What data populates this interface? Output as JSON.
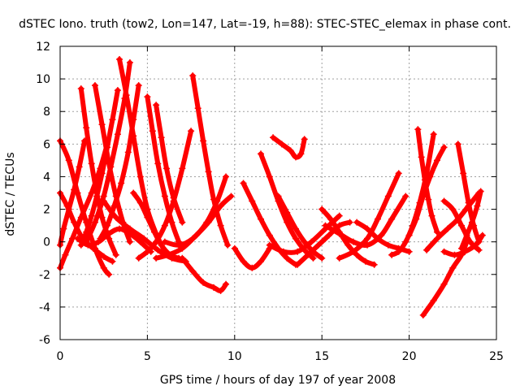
{
  "chart_data": {
    "type": "scatter",
    "title": "dSTEC Iono. truth (tow2, Lon=147, Lat=-19, h=88): STEC-STEC_elemax in phase cont.",
    "xlabel": "GPS time / hours of day 197 of year 2008",
    "ylabel": "dSTEC  / TECUs",
    "xlim": [
      0,
      25
    ],
    "ylim": [
      -6,
      12
    ],
    "xticks": [
      0,
      5,
      10,
      15,
      20,
      25
    ],
    "yticks": [
      -6,
      -4,
      -2,
      0,
      2,
      4,
      6,
      8,
      10,
      12
    ],
    "grid": true,
    "legend": "none",
    "marker": "plus",
    "color": "#ff0000",
    "series": [
      {
        "x": [
          0.0,
          0.5,
          1.0,
          1.5,
          2.0,
          2.5,
          2.8
        ],
        "y": [
          6.2,
          5.0,
          3.0,
          1.2,
          -0.4,
          -1.6,
          -2.0
        ]
      },
      {
        "x": [
          0.0,
          0.3,
          0.7,
          1.2,
          1.8,
          2.3,
          2.7
        ],
        "y": [
          -1.6,
          -0.8,
          0.2,
          1.5,
          3.0,
          4.5,
          6.0
        ]
      },
      {
        "x": [
          0.0,
          0.4,
          0.8,
          1.3,
          1.9,
          2.5,
          3.0
        ],
        "y": [
          3.0,
          2.2,
          1.2,
          0.2,
          -0.4,
          -0.9,
          -1.2
        ]
      },
      {
        "x": [
          0.0,
          0.2,
          0.5,
          0.8,
          1.1,
          1.4
        ],
        "y": [
          -0.2,
          0.8,
          2.0,
          3.2,
          4.6,
          6.2
        ]
      },
      {
        "x": [
          1.2,
          1.5,
          1.8,
          2.1,
          2.4,
          2.8,
          3.2
        ],
        "y": [
          9.4,
          7.0,
          4.8,
          3.0,
          1.5,
          0.2,
          -0.8
        ]
      },
      {
        "x": [
          2.0,
          2.4,
          2.8,
          3.2,
          3.6,
          4.0
        ],
        "y": [
          9.6,
          7.2,
          4.8,
          2.8,
          1.2,
          0.0
        ]
      },
      {
        "x": [
          3.3,
          3.0,
          2.7,
          2.4,
          2.1,
          1.8,
          1.5,
          1.2
        ],
        "y": [
          9.3,
          7.5,
          5.8,
          4.2,
          2.8,
          1.6,
          0.6,
          -0.2
        ]
      },
      {
        "x": [
          3.4,
          3.8,
          4.2,
          4.6,
          5.0,
          5.5,
          6.0
        ],
        "y": [
          11.2,
          9.0,
          6.5,
          4.0,
          2.0,
          0.5,
          -0.6
        ]
      },
      {
        "x": [
          4.0,
          3.7,
          3.3,
          2.9,
          2.5,
          2.0,
          1.5
        ],
        "y": [
          11.0,
          8.8,
          6.6,
          4.6,
          2.8,
          1.2,
          0.0
        ]
      },
      {
        "x": [
          4.5,
          4.2,
          3.9,
          3.5,
          3.1,
          2.7,
          2.3
        ],
        "y": [
          9.6,
          7.5,
          5.5,
          3.6,
          2.2,
          1.0,
          0.2
        ]
      },
      {
        "x": [
          5.0,
          5.3,
          5.6,
          6.0,
          6.4,
          6.8
        ],
        "y": [
          8.9,
          6.8,
          4.8,
          2.8,
          1.2,
          0.0
        ]
      },
      {
        "x": [
          5.5,
          5.8,
          6.1,
          6.5,
          7.0
        ],
        "y": [
          8.4,
          6.4,
          4.5,
          2.7,
          1.2
        ]
      },
      {
        "x": [
          4.2,
          4.6,
          5.0,
          5.4,
          5.8,
          6.3,
          6.8
        ],
        "y": [
          3.0,
          2.4,
          1.5,
          0.6,
          -0.2,
          -0.8,
          -1.0
        ]
      },
      {
        "x": [
          7.6,
          7.9,
          8.2,
          8.5,
          8.8,
          9.2,
          9.6
        ],
        "y": [
          10.2,
          8.2,
          6.2,
          4.3,
          2.6,
          1.0,
          -0.2
        ]
      },
      {
        "x": [
          4.5,
          5.0,
          5.5,
          6.0,
          6.5,
          7.0,
          7.5
        ],
        "y": [
          -1.0,
          -0.6,
          0.0,
          1.0,
          2.5,
          4.5,
          6.8
        ]
      },
      {
        "x": [
          7.0,
          7.6,
          8.2,
          8.8,
          9.2,
          9.5
        ],
        "y": [
          -1.0,
          -1.8,
          -2.5,
          -2.8,
          -3.0,
          -2.6
        ]
      },
      {
        "x": [
          5.5,
          6.2,
          7.0,
          7.8,
          8.5,
          9.2,
          9.8
        ],
        "y": [
          -1.0,
          -0.8,
          -0.4,
          0.4,
          1.2,
          2.2,
          2.8
        ]
      },
      {
        "x": [
          6.0,
          6.8,
          7.6,
          8.4,
          9.0,
          9.5
        ],
        "y": [
          0.0,
          -0.2,
          0.2,
          1.2,
          2.5,
          4.0
        ]
      },
      {
        "x": [
          1.0,
          1.6,
          2.2,
          2.8,
          3.4,
          4.0,
          4.6,
          5.2
        ],
        "y": [
          0.2,
          -0.2,
          0.0,
          0.5,
          0.8,
          0.5,
          0.0,
          -0.6
        ]
      },
      {
        "x": [
          2.5,
          3.2,
          4.0,
          4.8,
          5.6,
          6.4,
          7.2
        ],
        "y": [
          2.5,
          1.5,
          0.8,
          0.2,
          -0.5,
          -1.0,
          -1.2
        ]
      },
      {
        "x": [
          10.0,
          10.5,
          11.0,
          11.5,
          12.0
        ],
        "y": [
          -0.4,
          -1.2,
          -1.6,
          -1.2,
          -0.4
        ]
      },
      {
        "x": [
          11.5,
          12.0,
          12.5,
          13.0,
          13.5,
          14.0,
          14.5
        ],
        "y": [
          5.4,
          4.0,
          2.5,
          1.2,
          0.2,
          -0.5,
          -1.0
        ]
      },
      {
        "x": [
          12.2,
          12.7,
          13.2,
          13.5,
          13.8,
          14.0
        ],
        "y": [
          6.4,
          6.0,
          5.6,
          5.2,
          5.4,
          6.3
        ]
      },
      {
        "x": [
          10.5,
          11.0,
          11.5,
          12.0,
          12.5,
          13.0,
          13.5
        ],
        "y": [
          3.6,
          2.5,
          1.4,
          0.4,
          -0.4,
          -1.0,
          -1.4
        ]
      },
      {
        "x": [
          12.5,
          13.0,
          13.5,
          14.0,
          14.5,
          15.0
        ],
        "y": [
          2.8,
          1.8,
          0.8,
          0.0,
          -0.6,
          -1.0
        ]
      },
      {
        "x": [
          12.0,
          12.8,
          13.6,
          14.4,
          15.2,
          16.0
        ],
        "y": [
          -0.2,
          -0.6,
          -0.6,
          0.0,
          0.8,
          1.6
        ]
      },
      {
        "x": [
          13.6,
          14.2,
          14.8,
          15.4,
          16.0,
          16.6
        ],
        "y": [
          -1.4,
          -0.8,
          -0.2,
          0.4,
          1.0,
          1.2
        ]
      },
      {
        "x": [
          15.0,
          15.5,
          16.0,
          16.5,
          17.0,
          17.5,
          18.0
        ],
        "y": [
          2.0,
          1.4,
          0.6,
          -0.2,
          -0.8,
          -1.2,
          -1.4
        ]
      },
      {
        "x": [
          16.0,
          16.8,
          17.6,
          18.2,
          18.8,
          19.4
        ],
        "y": [
          -1.0,
          -0.6,
          0.2,
          1.4,
          2.8,
          4.2
        ]
      },
      {
        "x": [
          15.2,
          16.0,
          16.8,
          17.6,
          18.4,
          19.0,
          19.8
        ],
        "y": [
          1.0,
          0.5,
          0.0,
          -0.2,
          0.4,
          1.4,
          2.8
        ]
      },
      {
        "x": [
          17.0,
          17.6,
          18.2,
          18.8,
          19.4,
          20.0
        ],
        "y": [
          1.2,
          0.8,
          0.2,
          -0.2,
          -0.4,
          -0.6
        ]
      },
      {
        "x": [
          19.0,
          19.4,
          19.8,
          20.2,
          20.6,
          21.0,
          21.4
        ],
        "y": [
          -0.8,
          -0.6,
          0.0,
          1.0,
          2.4,
          4.2,
          6.6
        ]
      },
      {
        "x": [
          20.5,
          20.7,
          20.9,
          21.1,
          21.3,
          21.6
        ],
        "y": [
          6.9,
          5.2,
          3.8,
          2.6,
          1.6,
          0.6
        ]
      },
      {
        "x": [
          20.0,
          20.4,
          20.8,
          21.2,
          21.6,
          22.0
        ],
        "y": [
          0.4,
          1.4,
          2.8,
          4.0,
          5.0,
          5.8
        ]
      },
      {
        "x": [
          20.8,
          21.4,
          22.0,
          22.5,
          23.0,
          23.3
        ],
        "y": [
          -4.5,
          -3.6,
          -2.6,
          -1.6,
          -0.8,
          0.0
        ]
      },
      {
        "x": [
          21.0,
          21.6,
          22.2,
          22.8,
          23.4,
          24.0
        ],
        "y": [
          -0.5,
          0.2,
          0.8,
          1.4,
          2.2,
          3.0
        ]
      },
      {
        "x": [
          22.8,
          23.1,
          23.4,
          23.7,
          24.0
        ],
        "y": [
          6.0,
          4.2,
          2.4,
          1.0,
          0.0
        ]
      },
      {
        "x": [
          22.0,
          22.5,
          23.0,
          23.5,
          24.0
        ],
        "y": [
          2.5,
          2.0,
          1.0,
          0.0,
          -0.5
        ]
      },
      {
        "x": [
          23.0,
          23.3,
          23.6,
          23.9,
          24.1
        ],
        "y": [
          -0.4,
          0.4,
          1.2,
          2.2,
          3.1
        ]
      },
      {
        "x": [
          22.0,
          22.6,
          23.2,
          23.8,
          24.2
        ],
        "y": [
          -0.6,
          -0.8,
          -0.6,
          -0.2,
          0.4
        ]
      }
    ]
  }
}
